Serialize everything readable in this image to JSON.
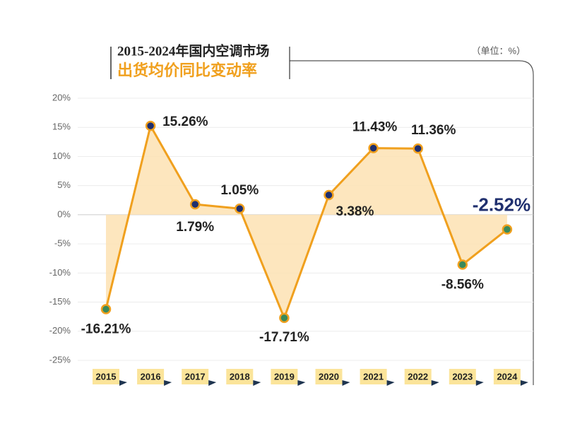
{
  "chart_data": {
    "type": "line",
    "title": "2015-2024年国内空调市场",
    "subtitle": "出货均价同比变动率",
    "unit_label": "（单位：%）",
    "categories": [
      "2015",
      "2016",
      "2017",
      "2018",
      "2019",
      "2020",
      "2021",
      "2022",
      "2023",
      "2024"
    ],
    "series": [
      {
        "name": "出货均价同比变动率",
        "color": "#f0a01e",
        "fill": "#fde2b3",
        "values": [
          -16.21,
          15.26,
          1.79,
          1.05,
          -17.71,
          3.38,
          11.43,
          11.36,
          -8.56,
          -2.52
        ],
        "value_labels": [
          "-16.21%",
          "15.26%",
          "1.79%",
          "1.05%",
          "-17.71%",
          "3.38%",
          "11.43%",
          "11.36%",
          "-8.56%",
          "-2.52%"
        ]
      }
    ],
    "positive_marker_color": "#1f2f6e",
    "negative_marker_color": "#3a8a5a",
    "ylim": [
      -25,
      20
    ],
    "yticks": [
      {
        "value": 20,
        "label": "20%"
      },
      {
        "value": 15,
        "label": "15%"
      },
      {
        "value": 10,
        "label": "10%"
      },
      {
        "value": 5,
        "label": "5%"
      },
      {
        "value": 0,
        "label": "0%"
      },
      {
        "value": -5,
        "label": "-5%"
      },
      {
        "value": -10,
        "label": "-10%"
      },
      {
        "value": -15,
        "label": "-15%"
      },
      {
        "value": -20,
        "label": "-20%"
      },
      {
        "value": -25,
        "label": "-25%"
      }
    ],
    "grid": true
  }
}
